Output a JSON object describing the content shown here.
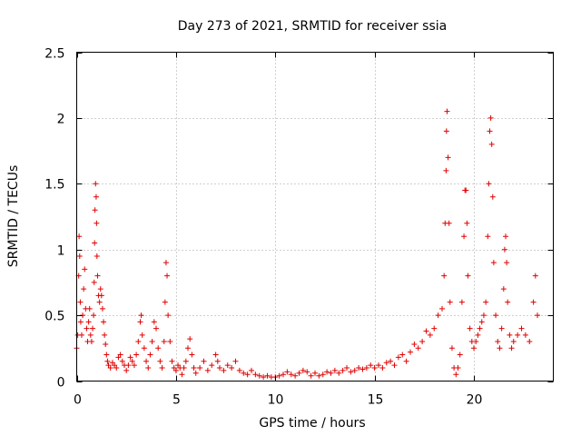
{
  "chart_data": {
    "type": "scatter",
    "title": "Day 273 of 2021, SRMTID for receiver ssia",
    "xlabel": "GPS time / hours",
    "ylabel": "SRMTID / TECUs",
    "xlim": [
      0,
      24
    ],
    "ylim": [
      0,
      2.5
    ],
    "xticks": [
      0,
      5,
      10,
      15,
      20
    ],
    "yticks": [
      0,
      0.5,
      1,
      1.5,
      2,
      2.5
    ],
    "xtick_labels": [
      "0",
      "5",
      "10",
      "15",
      "20"
    ],
    "ytick_labels": [
      "0",
      "0.5",
      "1",
      "1.5",
      "2",
      "2.5"
    ],
    "grid": true,
    "marker": "+",
    "color": "#e00000",
    "series": [
      {
        "name": "SRMTID",
        "points": [
          [
            0.0,
            0.25
          ],
          [
            0.05,
            0.35
          ],
          [
            0.1,
            0.8
          ],
          [
            0.12,
            1.1
          ],
          [
            0.15,
            0.95
          ],
          [
            0.18,
            0.6
          ],
          [
            0.2,
            0.45
          ],
          [
            0.25,
            0.35
          ],
          [
            0.3,
            0.5
          ],
          [
            0.35,
            0.7
          ],
          [
            0.4,
            0.85
          ],
          [
            0.45,
            0.55
          ],
          [
            0.5,
            0.4
          ],
          [
            0.55,
            0.3
          ],
          [
            0.6,
            0.45
          ],
          [
            0.65,
            0.55
          ],
          [
            0.7,
            0.35
          ],
          [
            0.75,
            0.3
          ],
          [
            0.8,
            0.4
          ],
          [
            0.85,
            0.5
          ],
          [
            0.88,
            0.75
          ],
          [
            0.9,
            1.05
          ],
          [
            0.92,
            1.3
          ],
          [
            0.95,
            1.5
          ],
          [
            0.98,
            1.4
          ],
          [
            1.0,
            1.2
          ],
          [
            1.02,
            0.95
          ],
          [
            1.05,
            0.8
          ],
          [
            1.1,
            0.65
          ],
          [
            1.15,
            0.6
          ],
          [
            1.2,
            0.7
          ],
          [
            1.25,
            0.65
          ],
          [
            1.3,
            0.55
          ],
          [
            1.35,
            0.45
          ],
          [
            1.4,
            0.35
          ],
          [
            1.45,
            0.28
          ],
          [
            1.5,
            0.2
          ],
          [
            1.55,
            0.15
          ],
          [
            1.6,
            0.12
          ],
          [
            1.7,
            0.1
          ],
          [
            1.8,
            0.14
          ],
          [
            1.9,
            0.12
          ],
          [
            2.0,
            0.1
          ],
          [
            2.1,
            0.18
          ],
          [
            2.2,
            0.2
          ],
          [
            2.3,
            0.15
          ],
          [
            2.4,
            0.12
          ],
          [
            2.5,
            0.08
          ],
          [
            2.6,
            0.12
          ],
          [
            2.7,
            0.18
          ],
          [
            2.8,
            0.15
          ],
          [
            2.9,
            0.12
          ],
          [
            3.0,
            0.2
          ],
          [
            3.1,
            0.3
          ],
          [
            3.2,
            0.45
          ],
          [
            3.25,
            0.5
          ],
          [
            3.3,
            0.35
          ],
          [
            3.4,
            0.25
          ],
          [
            3.5,
            0.15
          ],
          [
            3.6,
            0.1
          ],
          [
            3.7,
            0.2
          ],
          [
            3.8,
            0.3
          ],
          [
            3.9,
            0.45
          ],
          [
            4.0,
            0.4
          ],
          [
            4.1,
            0.25
          ],
          [
            4.2,
            0.15
          ],
          [
            4.3,
            0.1
          ],
          [
            4.4,
            0.3
          ],
          [
            4.45,
            0.6
          ],
          [
            4.5,
            0.9
          ],
          [
            4.55,
            0.8
          ],
          [
            4.6,
            0.5
          ],
          [
            4.7,
            0.3
          ],
          [
            4.8,
            0.15
          ],
          [
            4.9,
            0.1
          ],
          [
            5.0,
            0.08
          ],
          [
            5.1,
            0.12
          ],
          [
            5.2,
            0.1
          ],
          [
            5.3,
            0.05
          ],
          [
            5.4,
            0.1
          ],
          [
            5.5,
            0.15
          ],
          [
            5.6,
            0.25
          ],
          [
            5.7,
            0.32
          ],
          [
            5.8,
            0.2
          ],
          [
            5.9,
            0.1
          ],
          [
            6.0,
            0.06
          ],
          [
            6.2,
            0.1
          ],
          [
            6.4,
            0.15
          ],
          [
            6.6,
            0.08
          ],
          [
            6.8,
            0.12
          ],
          [
            7.0,
            0.2
          ],
          [
            7.1,
            0.15
          ],
          [
            7.2,
            0.1
          ],
          [
            7.4,
            0.08
          ],
          [
            7.6,
            0.12
          ],
          [
            7.8,
            0.1
          ],
          [
            8.0,
            0.15
          ],
          [
            8.2,
            0.08
          ],
          [
            8.4,
            0.06
          ],
          [
            8.6,
            0.05
          ],
          [
            8.8,
            0.08
          ],
          [
            9.0,
            0.05
          ],
          [
            9.2,
            0.04
          ],
          [
            9.4,
            0.03
          ],
          [
            9.6,
            0.04
          ],
          [
            9.8,
            0.03
          ],
          [
            10.0,
            0.03
          ],
          [
            10.2,
            0.04
          ],
          [
            10.4,
            0.05
          ],
          [
            10.6,
            0.07
          ],
          [
            10.8,
            0.05
          ],
          [
            11.0,
            0.04
          ],
          [
            11.2,
            0.06
          ],
          [
            11.4,
            0.08
          ],
          [
            11.6,
            0.07
          ],
          [
            11.8,
            0.04
          ],
          [
            12.0,
            0.06
          ],
          [
            12.2,
            0.04
          ],
          [
            12.4,
            0.05
          ],
          [
            12.6,
            0.07
          ],
          [
            12.8,
            0.06
          ],
          [
            13.0,
            0.08
          ],
          [
            13.2,
            0.06
          ],
          [
            13.4,
            0.08
          ],
          [
            13.6,
            0.1
          ],
          [
            13.8,
            0.07
          ],
          [
            14.0,
            0.08
          ],
          [
            14.2,
            0.1
          ],
          [
            14.4,
            0.09
          ],
          [
            14.6,
            0.1
          ],
          [
            14.8,
            0.12
          ],
          [
            15.0,
            0.1
          ],
          [
            15.2,
            0.12
          ],
          [
            15.4,
            0.1
          ],
          [
            15.6,
            0.14
          ],
          [
            15.8,
            0.15
          ],
          [
            16.0,
            0.12
          ],
          [
            16.2,
            0.18
          ],
          [
            16.4,
            0.2
          ],
          [
            16.6,
            0.15
          ],
          [
            16.8,
            0.22
          ],
          [
            17.0,
            0.28
          ],
          [
            17.2,
            0.25
          ],
          [
            17.4,
            0.3
          ],
          [
            17.6,
            0.38
          ],
          [
            17.8,
            0.35
          ],
          [
            18.0,
            0.4
          ],
          [
            18.2,
            0.5
          ],
          [
            18.4,
            0.55
          ],
          [
            18.5,
            0.8
          ],
          [
            18.55,
            1.2
          ],
          [
            18.6,
            1.6
          ],
          [
            18.62,
            1.9
          ],
          [
            18.65,
            2.05
          ],
          [
            18.7,
            1.7
          ],
          [
            18.75,
            1.2
          ],
          [
            18.8,
            0.6
          ],
          [
            18.9,
            0.25
          ],
          [
            19.0,
            0.1
          ],
          [
            19.1,
            0.05
          ],
          [
            19.2,
            0.1
          ],
          [
            19.3,
            0.2
          ],
          [
            19.4,
            0.6
          ],
          [
            19.5,
            1.1
          ],
          [
            19.55,
            1.45
          ],
          [
            19.6,
            1.45
          ],
          [
            19.65,
            1.2
          ],
          [
            19.7,
            0.8
          ],
          [
            19.8,
            0.4
          ],
          [
            19.9,
            0.3
          ],
          [
            20.0,
            0.25
          ],
          [
            20.1,
            0.3
          ],
          [
            20.2,
            0.35
          ],
          [
            20.3,
            0.4
          ],
          [
            20.4,
            0.45
          ],
          [
            20.5,
            0.5
          ],
          [
            20.6,
            0.6
          ],
          [
            20.7,
            1.1
          ],
          [
            20.75,
            1.5
          ],
          [
            20.8,
            1.9
          ],
          [
            20.85,
            2.0
          ],
          [
            20.9,
            1.8
          ],
          [
            20.95,
            1.4
          ],
          [
            21.0,
            0.9
          ],
          [
            21.1,
            0.5
          ],
          [
            21.2,
            0.3
          ],
          [
            21.3,
            0.25
          ],
          [
            21.4,
            0.4
          ],
          [
            21.5,
            0.7
          ],
          [
            21.55,
            1.0
          ],
          [
            21.6,
            1.1
          ],
          [
            21.65,
            0.9
          ],
          [
            21.7,
            0.6
          ],
          [
            21.8,
            0.35
          ],
          [
            21.9,
            0.25
          ],
          [
            22.0,
            0.3
          ],
          [
            22.2,
            0.35
          ],
          [
            22.4,
            0.4
          ],
          [
            22.6,
            0.35
          ],
          [
            22.8,
            0.3
          ],
          [
            23.0,
            0.6
          ],
          [
            23.1,
            0.8
          ],
          [
            23.2,
            0.5
          ]
        ]
      }
    ]
  }
}
